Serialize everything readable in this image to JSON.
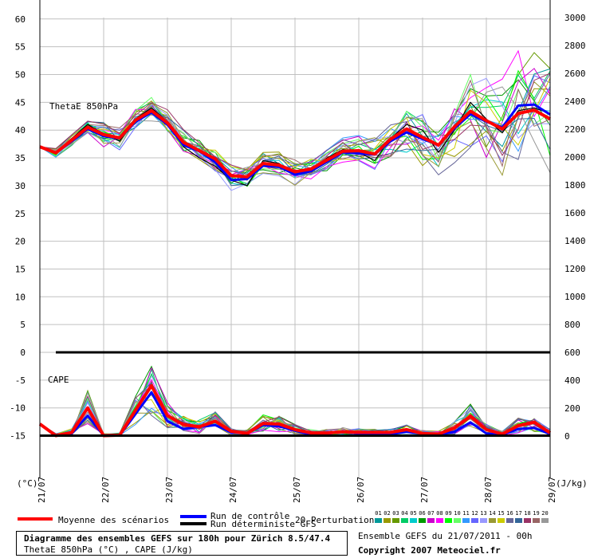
{
  "chart_data": {
    "type": "line",
    "left_axis": {
      "ticks": [
        60,
        55,
        50,
        45,
        40,
        35,
        30,
        25,
        20,
        15,
        10,
        5,
        0,
        -5,
        -10,
        -15
      ],
      "unit": "(°C)"
    },
    "right_axis": {
      "ticks": [
        3000,
        2800,
        2600,
        2400,
        2200,
        2000,
        1800,
        1600,
        1400,
        1200,
        1000,
        800,
        600,
        400,
        200,
        0
      ],
      "unit": "(J/kg)"
    },
    "x_axis": {
      "date_labels": [
        "21/07",
        "22/07",
        "23/07",
        "24/07",
        "25/07",
        "26/07",
        "27/07",
        "28/07",
        "29/07"
      ],
      "step_hours": 6
    },
    "series_labels": {
      "thetae": "ThetaE 850hPa",
      "cape": "CAPE"
    },
    "thetae": {
      "mean": [
        37.0,
        35.9,
        38.2,
        40.5,
        39.2,
        38.6,
        41.8,
        43.5,
        41.3,
        37.8,
        36.3,
        34.8,
        31.8,
        31.6,
        34.0,
        33.7,
        32.5,
        33.0,
        34.6,
        36.2,
        36.3,
        35.7,
        38.4,
        40.2,
        38.7,
        37.3,
        40.6,
        43.4,
        41.7,
        40.2,
        43.0,
        43.6,
        42.0
      ],
      "control": [
        37.0,
        35.9,
        38.0,
        40.2,
        38.9,
        38.5,
        41.5,
        43.2,
        41.0,
        37.3,
        36.2,
        34.2,
        31.0,
        31.2,
        33.6,
        33.4,
        32.0,
        32.6,
        34.3,
        36.0,
        35.8,
        35.6,
        38.0,
        39.6,
        38.4,
        37.3,
        40.3,
        42.9,
        41.5,
        40.5,
        44.4,
        44.6,
        42.8
      ],
      "deterministic": [
        37.0,
        35.9,
        38.5,
        41.0,
        39.3,
        38.0,
        42.0,
        44.0,
        41.5,
        37.0,
        35.0,
        33.5,
        31.0,
        30.0,
        34.5,
        34.0,
        32.0,
        32.5,
        35.0,
        36.5,
        36.0,
        34.5,
        38.5,
        41.0,
        40.0,
        36.0,
        40.0,
        45.0,
        42.0,
        39.5,
        43.5,
        44.0,
        43.0
      ]
    },
    "cape": {
      "mean": [
        -12.9,
        -15.0,
        -14.4,
        -10.0,
        -15.0,
        -14.9,
        -10.4,
        -6.0,
        -11.4,
        -13.0,
        -13.4,
        -12.4,
        -14.2,
        -14.6,
        -12.8,
        -12.9,
        -13.9,
        -14.5,
        -14.5,
        -14.3,
        -14.4,
        -14.4,
        -14.4,
        -13.9,
        -14.6,
        -14.7,
        -13.6,
        -11.5,
        -13.9,
        -14.7,
        -13.2,
        -12.6,
        -14.5
      ],
      "control": [
        -12.9,
        -15.0,
        -14.6,
        -11.4,
        -15.0,
        -15.0,
        -11.1,
        -7.2,
        -12.4,
        -13.8,
        -13.4,
        -13.1,
        -14.4,
        -14.6,
        -13.1,
        -13.3,
        -14.1,
        -14.8,
        -14.6,
        -14.3,
        -14.6,
        -14.7,
        -14.7,
        -14.3,
        -14.6,
        -14.8,
        -14.3,
        -12.6,
        -14.6,
        -14.8,
        -13.8,
        -13.6,
        -14.7
      ]
    },
    "zero_line": 0,
    "cape_baseline": -15
  },
  "legend": {
    "mean_label": "Moyenne des scénarios",
    "mean_color": "#ff0000",
    "control_label": "Run de contrôle",
    "control_color": "#0000ff",
    "deterministic_label": "Run déterministe GFS",
    "deterministic_color": "#000000",
    "perturbations_label": "20 Perturbations",
    "perturbation_ids": [
      "01",
      "02",
      "03",
      "04",
      "05",
      "06",
      "07",
      "08",
      "09",
      "10",
      "11",
      "12",
      "13",
      "14",
      "15",
      "16",
      "17",
      "18",
      "19",
      "20"
    ],
    "perturbation_colors": [
      "#009999",
      "#999900",
      "#669900",
      "#00cc66",
      "#00cccc",
      "#009900",
      "#cc00cc",
      "#ff00ff",
      "#00ff00",
      "#66ff66",
      "#3399ff",
      "#6666ff",
      "#9999ff",
      "#999933",
      "#cccc00",
      "#666699",
      "#336699",
      "#993366",
      "#996666",
      "#999999"
    ]
  },
  "footer": {
    "title": "Diagramme des ensembles GEFS sur 180h pour Zürich 8.5/47.4",
    "subtitle": "ThetaE 850hPa (°C) , CAPE (J/kg)",
    "run_info": "Ensemble GEFS du 21/07/2011 - 00h",
    "copyright": "Copyright 2007 Meteociel.fr"
  }
}
